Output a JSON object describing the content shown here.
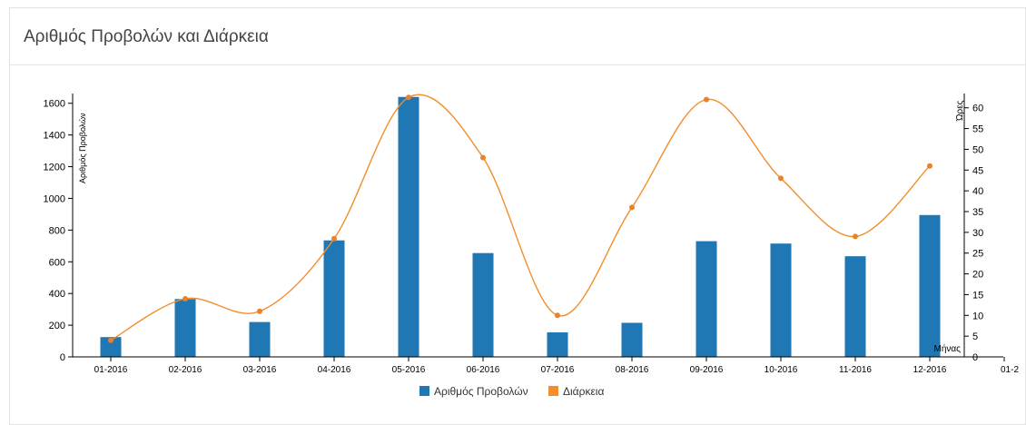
{
  "panel": {
    "title": "Αριθμός Προβολών και Διάρκεια"
  },
  "chart_data": {
    "type": "bar",
    "categories": [
      "01-2016",
      "02-2016",
      "03-2016",
      "04-2016",
      "05-2016",
      "06-2016",
      "07-2016",
      "08-2016",
      "09-2016",
      "10-2016",
      "11-2016",
      "12-2016"
    ],
    "x_overflow_tick": "01-2",
    "series": [
      {
        "name": "Αριθμός Προβολών",
        "type": "bar",
        "axis": "left",
        "color": "#1f77b4",
        "values": [
          125,
          365,
          220,
          735,
          1640,
          655,
          155,
          215,
          730,
          715,
          635,
          895
        ]
      },
      {
        "name": "Διάρκεια",
        "type": "line",
        "axis": "right",
        "color": "#f28e2b",
        "values": [
          4,
          14,
          11,
          28.5,
          62.5,
          48,
          10,
          36,
          62,
          43,
          29,
          46
        ]
      }
    ],
    "ylabel": "Αριθμός Προβολών",
    "y2label": "Ώρες",
    "xlabel": "Μήνας",
    "ylim": [
      0,
      1650
    ],
    "y2lim": [
      0,
      63
    ],
    "yticks": [
      0,
      200,
      400,
      600,
      800,
      1000,
      1200,
      1400,
      1600
    ],
    "y2ticks": [
      0,
      5,
      10,
      15,
      20,
      25,
      30,
      35,
      40,
      45,
      50,
      55,
      60
    ],
    "legend_position": "bottom-center",
    "grid": false
  }
}
